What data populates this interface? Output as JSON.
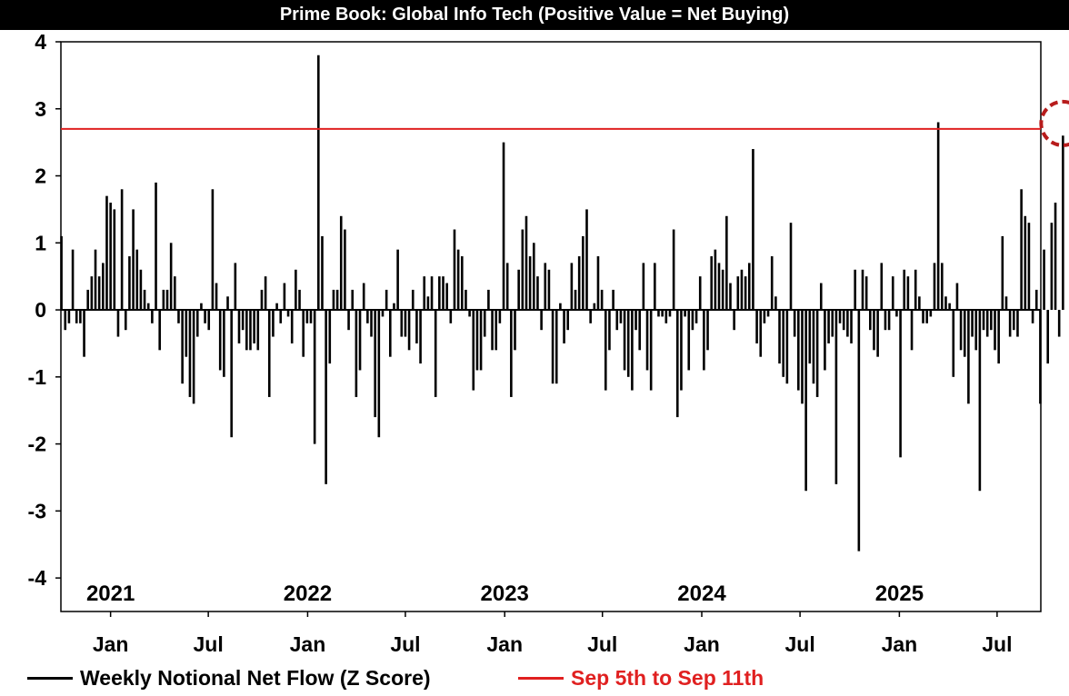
{
  "chart_data": {
    "type": "bar",
    "title": "Prime Book: Global Info Tech (Positive Value = Net Buying)",
    "ylim": [
      -4.5,
      4
    ],
    "yticks": [
      4,
      3,
      2,
      1,
      0,
      -1,
      -2,
      -3,
      -4
    ],
    "xlim": [
      "2020-10-01",
      "2025-09-20"
    ],
    "year_labels": [
      {
        "text": "2021",
        "date": "2021-01-01"
      },
      {
        "text": "2022",
        "date": "2022-01-01"
      },
      {
        "text": "2023",
        "date": "2023-01-01"
      },
      {
        "text": "2024",
        "date": "2024-01-01"
      },
      {
        "text": "2025",
        "date": "2025-01-01"
      }
    ],
    "month_ticks": [
      {
        "text": "Jan",
        "date": "2021-01-01"
      },
      {
        "text": "Jul",
        "date": "2021-07-01"
      },
      {
        "text": "Jan",
        "date": "2022-01-01"
      },
      {
        "text": "Jul",
        "date": "2022-07-01"
      },
      {
        "text": "Jan",
        "date": "2023-01-01"
      },
      {
        "text": "Jul",
        "date": "2023-07-01"
      },
      {
        "text": "Jan",
        "date": "2024-01-01"
      },
      {
        "text": "Jul",
        "date": "2024-07-01"
      },
      {
        "text": "Jan",
        "date": "2025-01-01"
      },
      {
        "text": "Jul",
        "date": "2025-07-01"
      }
    ],
    "series": [
      {
        "name": "Weekly Notional Net Flow (Z Score)",
        "color": "#000000",
        "start_date": "2020-10-02",
        "interval_days": 7,
        "values": [
          1.1,
          -0.3,
          -0.2,
          0.9,
          -0.2,
          -0.2,
          -0.7,
          0.3,
          0.5,
          0.9,
          0.5,
          0.7,
          1.7,
          1.6,
          1.5,
          -0.4,
          1.8,
          -0.3,
          0.8,
          1.5,
          0.9,
          0.6,
          0.3,
          0.1,
          -0.2,
          1.9,
          -0.6,
          0.3,
          0.3,
          1.0,
          0.5,
          -0.2,
          -1.1,
          -0.7,
          -1.3,
          -1.4,
          -0.4,
          0.1,
          -0.2,
          -0.3,
          1.8,
          0.4,
          -0.9,
          -1.0,
          0.2,
          -1.9,
          0.7,
          -0.5,
          -0.3,
          -0.6,
          -0.6,
          -0.5,
          -0.6,
          0.3,
          0.5,
          -1.3,
          -0.4,
          0.1,
          -0.2,
          0.4,
          -0.1,
          -0.5,
          0.6,
          0.3,
          -0.7,
          -0.2,
          -0.2,
          -2.0,
          3.8,
          1.1,
          -2.6,
          -0.8,
          0.3,
          0.3,
          1.4,
          1.2,
          -0.3,
          0.3,
          -1.3,
          -0.9,
          0.4,
          -0.2,
          -0.4,
          -1.6,
          -1.9,
          -0.1,
          0.3,
          -0.7,
          0.1,
          0.9,
          -0.4,
          -0.4,
          -0.6,
          0.3,
          -0.5,
          -0.8,
          0.5,
          0.2,
          0.5,
          -1.3,
          0.5,
          0.5,
          0.4,
          -0.2,
          1.2,
          0.9,
          0.8,
          0.3,
          -0.1,
          -1.2,
          -0.9,
          -0.9,
          -0.4,
          0.3,
          -0.6,
          -0.6,
          -0.2,
          2.5,
          0.7,
          -1.3,
          -0.6,
          0.6,
          1.2,
          1.4,
          0.8,
          1.0,
          0.5,
          -0.3,
          0.7,
          0.6,
          -1.1,
          -1.1,
          0.1,
          -0.5,
          -0.3,
          0.7,
          0.3,
          0.8,
          1.1,
          1.5,
          -0.2,
          0.1,
          0.8,
          0.3,
          -1.2,
          -0.6,
          0.3,
          -0.3,
          -0.2,
          -0.9,
          -1.0,
          -1.2,
          -0.3,
          -0.6,
          0.7,
          -0.9,
          -1.2,
          0.7,
          -0.1,
          -0.1,
          -0.2,
          -0.1,
          1.2,
          -1.6,
          -1.2,
          -0.1,
          -0.9,
          -0.3,
          -0.2,
          0.5,
          -0.9,
          -0.6,
          0.8,
          0.9,
          0.7,
          0.6,
          1.4,
          0.4,
          -0.3,
          0.5,
          0.6,
          0.5,
          0.7,
          2.4,
          -0.5,
          -0.7,
          -0.2,
          -0.1,
          0.8,
          0.2,
          -0.8,
          -1.0,
          -1.1,
          1.3,
          -0.4,
          -1.2,
          -1.4,
          -2.7,
          -0.8,
          -1.1,
          -1.3,
          0.4,
          -0.9,
          -0.5,
          -0.4,
          -2.6,
          -0.2,
          -0.3,
          -0.4,
          -0.5,
          0.6,
          -3.6,
          0.6,
          0.5,
          -0.3,
          -0.6,
          -0.7,
          0.7,
          -0.3,
          -0.3,
          0.5,
          -0.1,
          -2.2,
          0.6,
          0.5,
          -0.6,
          0.6,
          0.2,
          -0.2,
          -0.2,
          -0.1,
          0.7,
          2.8,
          0.7,
          0.2,
          0.1,
          -1.0,
          0.4,
          -0.6,
          -0.7,
          -1.4,
          -0.4,
          -0.6,
          -2.7,
          -0.3,
          -0.4,
          -0.3,
          -0.6,
          -0.8,
          1.1,
          0.2,
          -0.4,
          -0.3,
          -0.4,
          1.8,
          1.4,
          1.3,
          -0.2,
          0.3,
          -1.4,
          0.9,
          -0.8,
          1.3,
          1.6,
          -0.4,
          2.6
        ]
      },
      {
        "name": "Sep 5th to Sep 11th",
        "color": "#e02020",
        "y": 2.7
      }
    ]
  },
  "legend": {
    "items": [
      {
        "label": "Weekly Notional Net Flow (Z Score)",
        "color": "#000000"
      },
      {
        "label": "Sep 5th to Sep 11th",
        "color": "#e02020"
      }
    ]
  },
  "colors": {
    "highlight_circle": "#b71c1c",
    "zero_line": "#000000"
  }
}
